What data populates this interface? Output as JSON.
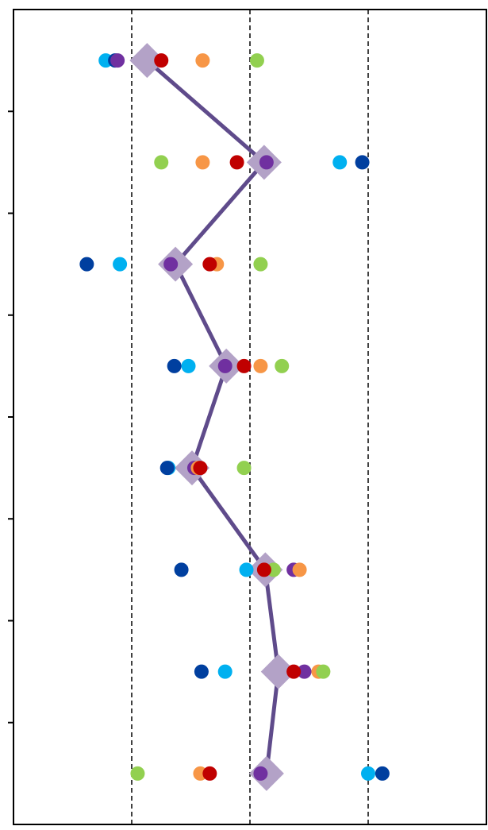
{
  "chart_data": {
    "type": "dot",
    "categories": [
      null,
      null,
      null,
      null,
      null,
      null,
      null,
      null
    ],
    "xlim": [
      0,
      4
    ],
    "xticks": [
      1,
      2,
      3
    ],
    "grid": true,
    "series": [
      {
        "color": "#00b0f0",
        "values": [
          0.78,
          2.76,
          0.9,
          1.48,
          1.31,
          1.97,
          1.79,
          3.0
        ]
      },
      {
        "color": "#003f9f",
        "values": [
          0.86,
          2.95,
          0.62,
          1.36,
          1.3,
          1.42,
          1.59,
          3.12
        ]
      },
      {
        "color": "#7030a0",
        "values": [
          0.88,
          2.14,
          1.33,
          1.79,
          1.53,
          2.37,
          2.46,
          2.09
        ]
      },
      {
        "color": "#f79646",
        "values": [
          1.6,
          1.6,
          1.72,
          2.09,
          1.56,
          2.42,
          2.58,
          1.58
        ]
      },
      {
        "color": "#92d050",
        "values": [
          2.06,
          1.25,
          2.09,
          2.27,
          1.95,
          2.2,
          2.62,
          1.05
        ]
      },
      {
        "color": "#c00000",
        "values": [
          1.25,
          1.89,
          1.66,
          1.95,
          1.58,
          2.12,
          2.37,
          1.66
        ]
      }
    ],
    "mean": {
      "color": "#b3a2c7",
      "line_color": "#5f4b8b",
      "values": [
        1.13,
        2.12,
        1.37,
        1.8,
        1.51,
        2.13,
        2.24,
        2.14
      ]
    }
  }
}
